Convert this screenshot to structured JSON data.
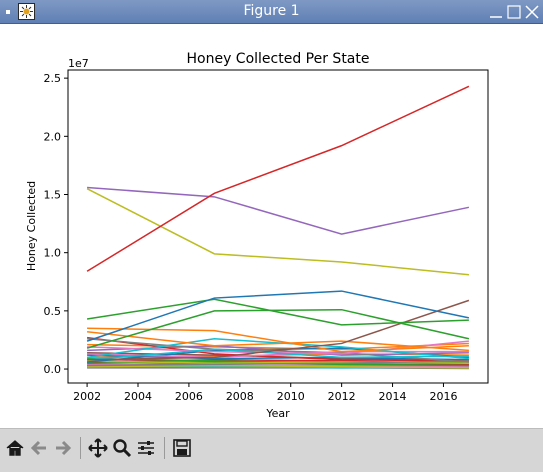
{
  "window": {
    "title": "Figure 1"
  },
  "toolbar": {
    "buttons": [
      "home-icon",
      "back-icon",
      "forward-icon",
      "pan-icon",
      "zoom-icon",
      "configure-subplots-icon",
      "save-icon"
    ]
  },
  "chart_data": {
    "type": "line",
    "title": "Honey Collected Per State",
    "xlabel": "Year",
    "ylabel": "Honey Collected",
    "offset_text": "1e7",
    "x": [
      2002,
      2007,
      2012,
      2017
    ],
    "xlim": [
      2001.25,
      2017.75
    ],
    "ylim": [
      -1200000,
      25700000
    ],
    "x_ticks": [
      2002,
      2004,
      2006,
      2008,
      2010,
      2012,
      2014,
      2016
    ],
    "x_tick_labels": [
      "2002",
      "2004",
      "2006",
      "2008",
      "2010",
      "2012",
      "2014",
      "2016"
    ],
    "y_ticks": [
      0,
      5000000,
      10000000,
      15000000,
      20000000,
      25000000
    ],
    "y_tick_labels": [
      "0.0",
      "0.5",
      "1.0",
      "1.5",
      "2.0",
      "2.5"
    ],
    "grid": false,
    "series": [
      {
        "name": "red",
        "color": "#d62728",
        "values": [
          8400000,
          15100000,
          19200000,
          24300000
        ]
      },
      {
        "name": "purple",
        "color": "#9467bd",
        "values": [
          15600000,
          14800000,
          11600000,
          13900000
        ]
      },
      {
        "name": "olive",
        "color": "#bcbd22",
        "values": [
          15500000,
          9900000,
          9200000,
          8100000
        ]
      },
      {
        "name": "blue",
        "color": "#1f77b4",
        "values": [
          2400000,
          6100000,
          6700000,
          4400000
        ]
      },
      {
        "name": "green-a",
        "color": "#2ca02c",
        "values": [
          4300000,
          6000000,
          3800000,
          4200000
        ]
      },
      {
        "name": "green-b",
        "color": "#2ca02c",
        "values": [
          1800000,
          5000000,
          5100000,
          2600000
        ]
      },
      {
        "name": "brown",
        "color": "#8c564b",
        "values": [
          800000,
          1000000,
          2200000,
          5900000
        ]
      },
      {
        "name": "orange-a",
        "color": "#ff7f0e",
        "values": [
          3500000,
          3300000,
          1500000,
          2000000
        ]
      },
      {
        "name": "orange-b",
        "color": "#ff7f0e",
        "values": [
          3200000,
          2000000,
          2400000,
          1600000
        ]
      },
      {
        "name": "cyan-a",
        "color": "#17becf",
        "values": [
          1000000,
          2600000,
          1900000,
          900000
        ]
      },
      {
        "name": "cyan-b",
        "color": "#17becf",
        "values": [
          800000,
          1700000,
          1000000,
          1100000
        ]
      },
      {
        "name": "pink-a",
        "color": "#e377c2",
        "values": [
          1900000,
          1500000,
          1300000,
          2400000
        ]
      },
      {
        "name": "pink-b",
        "color": "#e377c2",
        "values": [
          1300000,
          1000000,
          1500000,
          1500000
        ]
      },
      {
        "name": "gray-a",
        "color": "#7f7f7f",
        "values": [
          2600000,
          1700000,
          1400000,
          600000
        ]
      },
      {
        "name": "gray-b",
        "color": "#7f7f7f",
        "values": [
          300000,
          400000,
          500000,
          700000
        ]
      },
      {
        "name": "red-b",
        "color": "#d62728",
        "values": [
          2700000,
          1300000,
          800000,
          700000
        ]
      },
      {
        "name": "purple-b",
        "color": "#9467bd",
        "values": [
          1600000,
          2000000,
          1200000,
          1400000
        ]
      },
      {
        "name": "blue-b",
        "color": "#1f77b4",
        "values": [
          1200000,
          900000,
          1000000,
          800000
        ]
      },
      {
        "name": "blue-c",
        "color": "#1f77b4",
        "values": [
          600000,
          1600000,
          1800000,
          1000000
        ]
      },
      {
        "name": "olive-b",
        "color": "#bcbd22",
        "values": [
          700000,
          500000,
          600000,
          500000
        ]
      },
      {
        "name": "olive-c",
        "color": "#bcbd22",
        "values": [
          200000,
          300000,
          200000,
          100000
        ]
      },
      {
        "name": "brown-b",
        "color": "#8c564b",
        "values": [
          1400000,
          1200000,
          900000,
          800000
        ]
      },
      {
        "name": "green-c",
        "color": "#2ca02c",
        "values": [
          900000,
          700000,
          500000,
          600000
        ]
      },
      {
        "name": "green-d",
        "color": "#2ca02c",
        "values": [
          500000,
          600000,
          400000,
          300000
        ]
      },
      {
        "name": "orange-c",
        "color": "#ff7f0e",
        "values": [
          2100000,
          1900000,
          1700000,
          2200000
        ]
      },
      {
        "name": "pink-c",
        "color": "#e377c2",
        "values": [
          400000,
          300000,
          300000,
          200000
        ]
      },
      {
        "name": "cyan-c",
        "color": "#17becf",
        "values": [
          300000,
          200000,
          100000,
          200000
        ]
      },
      {
        "name": "gray-c",
        "color": "#7f7f7f",
        "values": [
          100000,
          100000,
          100000,
          50000
        ]
      },
      {
        "name": "red-c",
        "color": "#d62728",
        "values": [
          600000,
          800000,
          700000,
          400000
        ]
      },
      {
        "name": "purple-c",
        "color": "#9467bd",
        "values": [
          200000,
          200000,
          300000,
          300000
        ]
      },
      {
        "name": "brown-c",
        "color": "#8c564b",
        "values": [
          300000,
          500000,
          400000,
          400000
        ]
      },
      {
        "name": "blue-d",
        "color": "#1f77b4",
        "values": [
          150000,
          150000,
          200000,
          150000
        ]
      },
      {
        "name": "orange-d",
        "color": "#ff7f0e",
        "values": [
          1000000,
          1100000,
          1300000,
          1200000
        ]
      },
      {
        "name": "pink-d",
        "color": "#e377c2",
        "values": [
          800000,
          600000,
          700000,
          500000
        ]
      }
    ]
  }
}
